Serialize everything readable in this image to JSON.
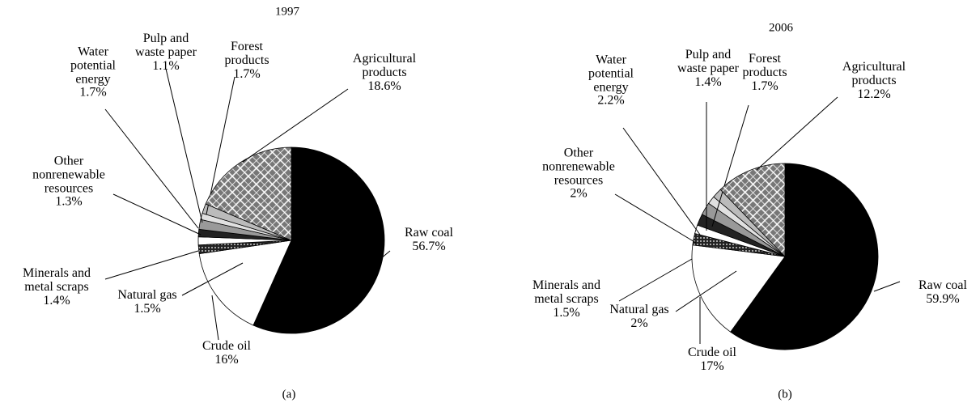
{
  "chart_data": [
    {
      "type": "pie",
      "title": "1997",
      "caption": "(a)",
      "categories": [
        "Raw coal",
        "Crude oil",
        "Natural gas",
        "Minerals and metal scraps",
        "Other nonrenewable resources",
        "Water potential energy",
        "Pulp and waste paper",
        "Forest products",
        "Agricultural products"
      ],
      "values": [
        56.7,
        16,
        1.5,
        1.4,
        1.3,
        1.7,
        1.1,
        1.7,
        18.6
      ],
      "value_labels": [
        "56.7%",
        "16%",
        "1.5%",
        "1.4%",
        "1.3%",
        "1.7%",
        "1.1%",
        "1.7%",
        "18.6%"
      ],
      "colors": [
        "#000000",
        "#ffffff",
        "#333333",
        "#ffffff",
        "#222222",
        "#999999",
        "#e0e0e0",
        "#bbbbbb",
        "#777777"
      ]
    },
    {
      "type": "pie",
      "title": "2006",
      "caption": "(b)",
      "categories": [
        "Raw coal",
        "Crude oil",
        "Natural gas",
        "Minerals and metal scraps",
        "Other nonrenewable resources",
        "Water potential energy",
        "Pulp and waste paper",
        "Forest products",
        "Agricultural products"
      ],
      "values": [
        59.9,
        17,
        2,
        1.5,
        2,
        2.2,
        1.4,
        1.7,
        12.2
      ],
      "value_labels": [
        "59.9%",
        "17%",
        "2%",
        "1.5%",
        "2%",
        "2.2%",
        "1.4%",
        "1.7%",
        "12.2%"
      ],
      "colors": [
        "#000000",
        "#ffffff",
        "#333333",
        "#ffffff",
        "#222222",
        "#999999",
        "#e0e0e0",
        "#bbbbbb",
        "#777777"
      ]
    }
  ]
}
